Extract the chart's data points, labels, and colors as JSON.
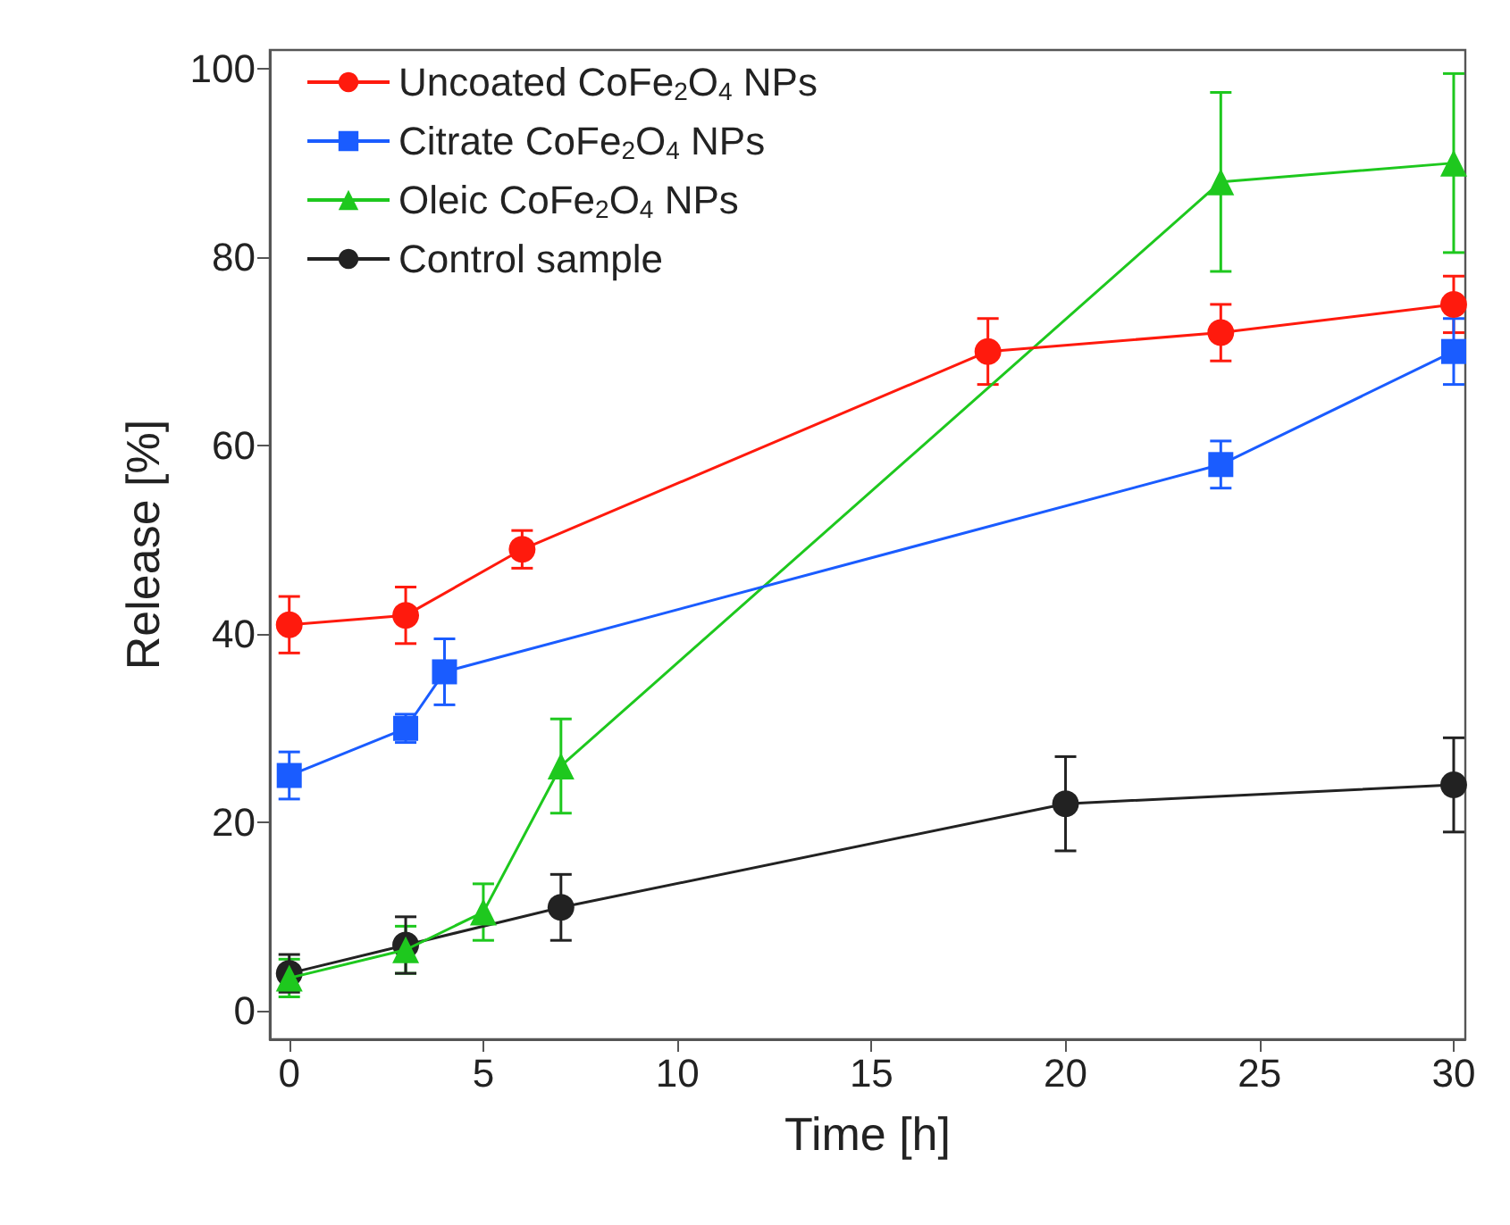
{
  "chart_data": {
    "type": "line",
    "xlabel": "Time [h]",
    "ylabel": "Release [%]",
    "xlim": [
      -0.5,
      30.3
    ],
    "ylim": [
      -3,
      102
    ],
    "xticks": [
      0,
      5,
      10,
      15,
      20,
      25,
      30
    ],
    "yticks": [
      0,
      20,
      40,
      60,
      80,
      100
    ],
    "grid": false,
    "legend": "top left",
    "line_style": "solid",
    "series": [
      {
        "name": "Uncoated CoFe$_{2}$O$_{4}$ NPs",
        "color": "#ff1a0d",
        "marker": "circle",
        "x": [
          0,
          3,
          6,
          18,
          24,
          30
        ],
        "values": [
          41,
          42,
          49,
          70,
          72,
          75
        ],
        "errors": [
          3,
          3,
          2,
          3.5,
          3,
          3
        ]
      },
      {
        "name": "Citrate CoFe$_{2}$O$_{4}$ NPs",
        "color": "#1a5cff",
        "marker": "square",
        "x": [
          0,
          3,
          4,
          24,
          30
        ],
        "values": [
          25,
          30,
          36,
          58,
          70
        ],
        "errors": [
          2.5,
          1.5,
          3.5,
          2.5,
          3.5
        ]
      },
      {
        "name": "Oleic CoFe$_{2}$O$_{4}$ NPs",
        "color": "#1ec81e",
        "marker": "triangle",
        "x": [
          0,
          3,
          5,
          7,
          24,
          30
        ],
        "values": [
          3.5,
          6.5,
          10.5,
          26,
          88,
          90
        ],
        "errors": [
          2,
          2.5,
          3,
          5,
          9.5,
          9.5
        ]
      },
      {
        "name": "Control sample",
        "color": "#222222",
        "marker": "circle",
        "x": [
          0,
          3,
          7,
          20,
          30
        ],
        "values": [
          4,
          7,
          11,
          22,
          24
        ],
        "errors": [
          2,
          3,
          3.5,
          5,
          5
        ]
      }
    ]
  }
}
